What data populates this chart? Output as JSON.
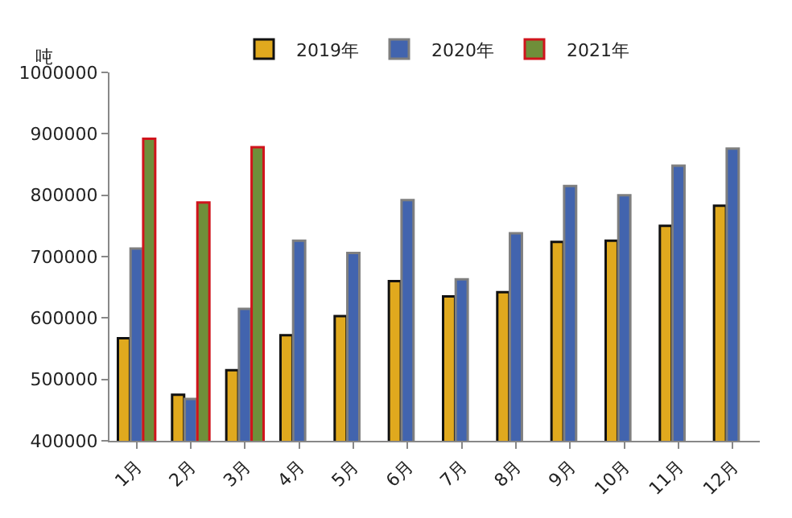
{
  "chart_data": {
    "type": "bar",
    "ylabel": "吨",
    "categories": [
      "1月",
      "2月",
      "3月",
      "4月",
      "5月",
      "6月",
      "7月",
      "8月",
      "9月",
      "10月",
      "11月",
      "12月"
    ],
    "series": [
      {
        "name": "2019年",
        "color": "#e0a91e",
        "values": [
          567000,
          475000,
          515000,
          572000,
          603000,
          660000,
          635000,
          642000,
          724000,
          726000,
          750000,
          783000
        ]
      },
      {
        "name": "2020年",
        "color": "#4264ae",
        "values": [
          713000,
          468000,
          615000,
          726000,
          706000,
          792000,
          663000,
          738000,
          815000,
          800000,
          848000,
          876000
        ]
      },
      {
        "name": "2021年",
        "color": "#6f8f3a",
        "values": [
          892000,
          788000,
          878000,
          null,
          null,
          null,
          null,
          null,
          null,
          null,
          null,
          null
        ]
      }
    ],
    "ylim": [
      400000,
      1000000
    ],
    "yticks": [
      400000,
      500000,
      600000,
      700000,
      800000,
      900000,
      1000000
    ],
    "grid": false,
    "legend": "top"
  }
}
